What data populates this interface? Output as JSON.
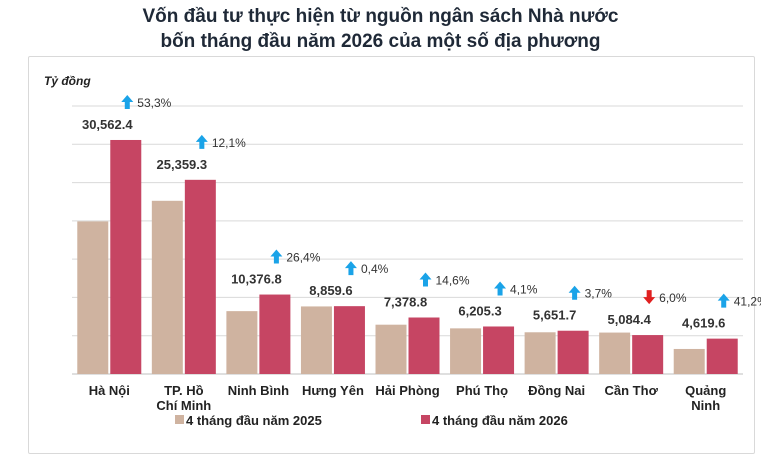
{
  "title_line1": "Vốn đầu tư thực hiện từ nguồn ngân sách Nhà nước",
  "title_line2": "bốn tháng đầu năm 2026 của một số địa phương",
  "chart_data": {
    "type": "bar",
    "ylabel": "Tỷ đồng",
    "ylim": [
      0,
      35000
    ],
    "grid": true,
    "legend_position": "bottom",
    "categories": [
      "Hà Nội",
      "TP. Hồ Chí Minh",
      "Ninh Bình",
      "Hưng Yên",
      "Hải Phòng",
      "Phú Thọ",
      "Đồng Nai",
      "Cần Thơ",
      "Quảng Ninh"
    ],
    "category_lines": [
      [
        "Hà Nội"
      ],
      [
        "TP. Hồ",
        "Chí Minh"
      ],
      [
        "Ninh Bình"
      ],
      [
        "Hưng Yên"
      ],
      [
        "Hải Phòng"
      ],
      [
        "Phú Thọ"
      ],
      [
        "Đồng Nai"
      ],
      [
        "Cần Thơ"
      ],
      [
        "Quảng",
        "Ninh"
      ]
    ],
    "series": [
      {
        "name": "4 tháng đầu năm 2025",
        "color": "#cfb3a0",
        "values": [
          19930,
          22620,
          8210,
          8825,
          6440,
          5960,
          5450,
          5410,
          3270
        ]
      },
      {
        "name": "4 tháng đầu năm 2026",
        "color": "#c64563",
        "values": [
          30562.4,
          25359.3,
          10376.8,
          8859.6,
          7378.8,
          6205.3,
          5651.7,
          5084.4,
          4619.6
        ]
      }
    ],
    "value_labels": [
      "30,562.4",
      "25,359.3",
      "10,376.8",
      "8,859.6",
      "7,378.8",
      "6,205.3",
      "5,651.7",
      "5,084.4",
      "4,619.6"
    ],
    "changes": [
      {
        "text": "53,3%",
        "direction": "up"
      },
      {
        "text": "12,1%",
        "direction": "up"
      },
      {
        "text": "26,4%",
        "direction": "up"
      },
      {
        "text": "0,4%",
        "direction": "up"
      },
      {
        "text": "14,6%",
        "direction": "up"
      },
      {
        "text": "4,1%",
        "direction": "up"
      },
      {
        "text": "3,7%",
        "direction": "up"
      },
      {
        "text": "6,0%",
        "direction": "down"
      },
      {
        "text": "41,2%",
        "direction": "up"
      }
    ],
    "colors": {
      "up_arrow": "#1aa3e8",
      "down_arrow": "#e02020",
      "grid": "#d9d9d9",
      "axis_text": "#222222"
    }
  }
}
